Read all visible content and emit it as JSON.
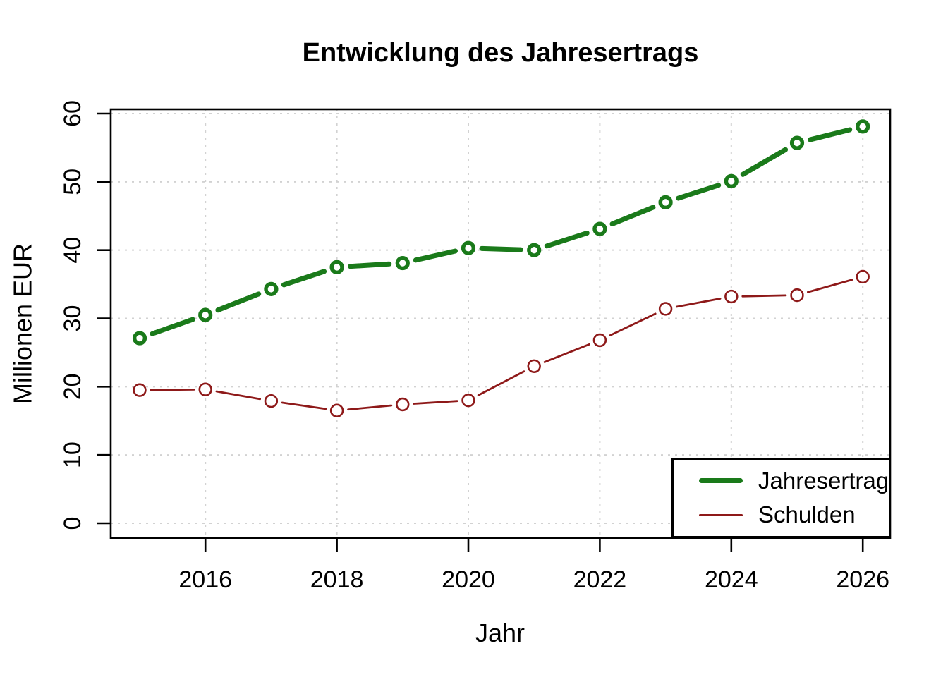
{
  "chart_data": {
    "type": "line",
    "title": "Entwicklung des Jahresertrags",
    "xlabel": "Jahr",
    "ylabel": "Millionen EUR",
    "x": [
      2015,
      2016,
      2017,
      2018,
      2019,
      2020,
      2021,
      2022,
      2023,
      2024,
      2025,
      2026
    ],
    "series": [
      {
        "name": "Jahresertrag",
        "color": "#1a7a1a",
        "style": "thick dashed-gap line with open circle markers",
        "values": [
          27.1,
          30.5,
          34.3,
          37.5,
          38.1,
          40.3,
          40.0,
          43.1,
          47.0,
          50.1,
          55.7,
          58.1
        ]
      },
      {
        "name": "Schulden",
        "color": "#8e1919",
        "style": "thin line with open circle markers",
        "values": [
          19.5,
          19.6,
          17.9,
          16.5,
          17.4,
          18.0,
          23.0,
          26.8,
          31.4,
          33.2,
          33.4,
          36.1
        ]
      }
    ],
    "x_ticks": [
      2016,
      2018,
      2020,
      2022,
      2024,
      2026
    ],
    "y_ticks": [
      0,
      10,
      20,
      30,
      40,
      50,
      60
    ],
    "xlim": [
      2015,
      2026
    ],
    "ylim": [
      0,
      60
    ],
    "grid": "dotted light-gray grid at all ticks, both axes",
    "legend_position": "bottom-right",
    "colors": {
      "grid": "#d2d2d2",
      "axis": "#000000",
      "background": "#ffffff"
    }
  }
}
